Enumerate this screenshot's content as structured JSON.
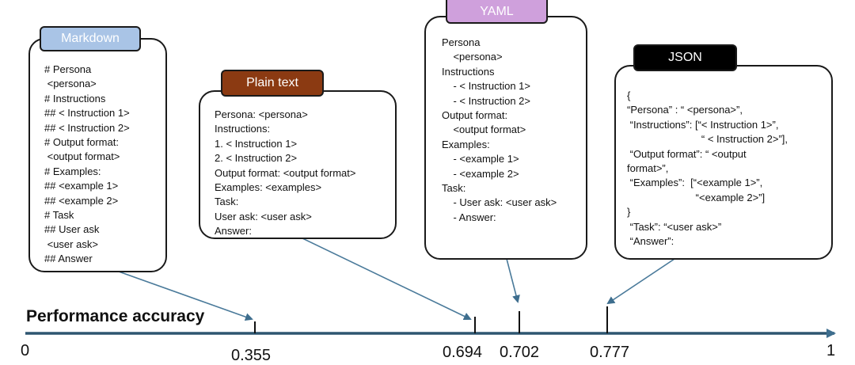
{
  "formats": [
    {
      "label": "Markdown",
      "accuracy": 0.355,
      "color": "#a9c4e6",
      "lines": [
        "# Persona",
        " <persona>",
        "# Instructions",
        "## < Instruction 1>",
        "## < Instruction 2>",
        "# Output format:",
        " <output format>",
        "# Examples:",
        "## <example 1>",
        "## <example 2>",
        "# Task",
        "## User ask",
        " <user ask>",
        "## Answer"
      ]
    },
    {
      "label": "Plain text",
      "accuracy": 0.694,
      "color": "#8b3a12",
      "lines": [
        "Persona: <persona>",
        "Instructions:",
        "1. < Instruction 1>",
        "2. < Instruction 2>",
        "Output format: <output format>",
        "Examples: <examples>",
        "Task:",
        "User ask: <user ask>",
        "Answer:"
      ]
    },
    {
      "label": "YAML",
      "accuracy": 0.702,
      "color": "#cfa0dc",
      "lines": [
        "Persona",
        "    <persona>",
        "Instructions",
        "    - < Instruction 1>",
        "    - < Instruction 2>",
        "Output format:",
        "    <output format>",
        "Examples:",
        "    - <example 1>",
        "    - <example 2>",
        "Task:",
        "    - User ask: <user ask>",
        "    - Answer:"
      ]
    },
    {
      "label": "JSON",
      "accuracy": 0.777,
      "color": "#000000",
      "lines": [
        "{",
        "“Persona” : “ <persona>”,",
        " “Instructions”: [“< Instruction 1>”,",
        "                          “ < Instruction 2>”],",
        " “Output format”: “ <output",
        "format>”,",
        " “Examples”:  [“<example 1>”,",
        "                        “<example 2>”]",
        "}",
        " “Task”: “<user ask>”",
        " “Answer”:"
      ]
    }
  ],
  "axis": {
    "title": "Performance accuracy",
    "min": 0,
    "max": 1,
    "min_label": "0",
    "max_label": "1",
    "ticks": [
      "0.355",
      "0.694",
      "0.702",
      "0.777"
    ]
  }
}
